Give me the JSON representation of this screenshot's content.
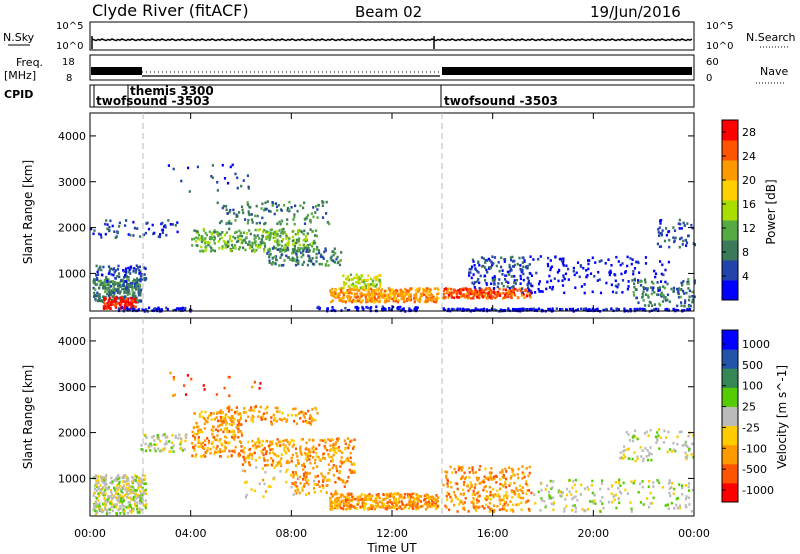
{
  "header": {
    "station": "Clyde River (fitACF)",
    "beam": "Beam 02",
    "date": "19/Jun/2016"
  },
  "noise_panel": {
    "left_label": "N.Sky",
    "right_label": "N.Search",
    "left_ticks": [
      "10^5",
      "10^0"
    ],
    "right_ticks": [
      "10^5",
      "10^0"
    ]
  },
  "freq_panel": {
    "left_label_1": "Freq.",
    "left_label_2": "[MHz]",
    "right_label": "Nave",
    "left_ticks": [
      "18",
      "8"
    ],
    "right_ticks": [
      "60",
      "0"
    ]
  },
  "cpid_panel": {
    "label": "CPID",
    "entries": [
      {
        "name": "twofsound -3503",
        "start_hour": 0
      },
      {
        "name": "themis 3300",
        "start_hour": 2.2
      },
      {
        "name": "twofsound -3503",
        "start_hour": 14
      }
    ]
  },
  "colors": {
    "power_scale": [
      "#0000ff",
      "#2244aa",
      "#3a7a5a",
      "#55aa44",
      "#aadd00",
      "#ffd000",
      "#ff9900",
      "#ff5500",
      "#ff0000"
    ],
    "velocity_scale": [
      "#ff0000",
      "#ff5500",
      "#ff9900",
      "#ffcc00",
      "#bbbbbb",
      "#55cc00",
      "#338855",
      "#2255aa",
      "#0000ff"
    ],
    "ground_scatter": "#bbbbbb"
  },
  "chart_data": [
    {
      "type": "heatmap",
      "name": "power",
      "ylabel": "Slant Range [km]",
      "yticks": [
        1000,
        2000,
        3000,
        4000
      ],
      "ylim": [
        180,
        4500
      ],
      "xlim": [
        0,
        24
      ],
      "colorbar_label": "Power [dB]",
      "colorbar_ticks": [
        "4",
        "8",
        "12",
        "16",
        "20",
        "24",
        "28"
      ],
      "colorbar_range": [
        0,
        30
      ]
    },
    {
      "type": "heatmap",
      "name": "velocity",
      "ylabel": "Slant Range [km]",
      "yticks": [
        1000,
        2000,
        3000,
        4000
      ],
      "ylim": [
        180,
        4500
      ],
      "xlim": [
        0,
        24
      ],
      "xlabel": "Time UT",
      "xticks": [
        "00:00",
        "04:00",
        "08:00",
        "12:00",
        "16:00",
        "20:00",
        "00:00"
      ],
      "xtick_hours": [
        0,
        4,
        8,
        12,
        16,
        20,
        24
      ],
      "colorbar_label": "Velocity [m s^-1]",
      "colorbar_ticks": [
        "1000",
        "500",
        "100",
        "25",
        "-25",
        "-100",
        "-500",
        "-1000"
      ]
    }
  ]
}
